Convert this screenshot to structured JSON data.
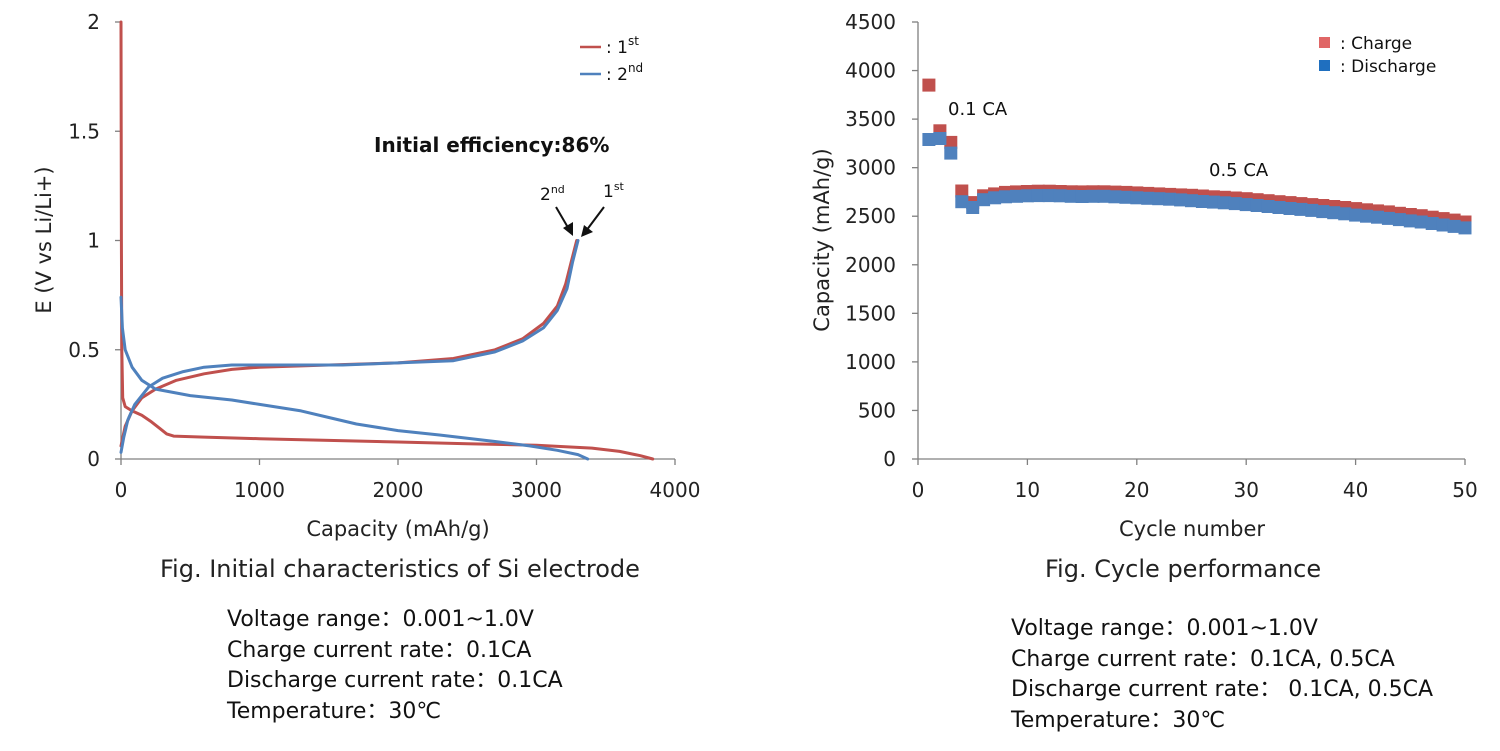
{
  "chart_data": [
    {
      "type": "line",
      "xlabel": "Capacity (mAh/g)",
      "ylabel": "E (V vs Li/Li+)",
      "xlim": [
        0,
        4000
      ],
      "ylim": [
        0,
        2
      ],
      "x_ticks": [
        0,
        1000,
        2000,
        3000,
        4000
      ],
      "y_ticks": [
        0,
        0.5,
        1,
        1.5,
        2
      ],
      "grid": false,
      "legend_position": "top-right",
      "legend": [
        {
          "color": "#c0504d",
          "label": ": 1",
          "sup": "st"
        },
        {
          "color": "#4f81bd",
          "label": ": 2",
          "sup": "nd"
        }
      ],
      "annotation": "Initial efficiency:86%",
      "arrow_labels": [
        {
          "text": "2",
          "sup": "nd"
        },
        {
          "text": "1",
          "sup": "st"
        }
      ],
      "series": [
        {
          "name": "1st",
          "color": "#c0504d",
          "discharge": [
            [
              0,
              2.0
            ],
            [
              3,
              1.0
            ],
            [
              6,
              0.5
            ],
            [
              12,
              0.28
            ],
            [
              30,
              0.24
            ],
            [
              80,
              0.22
            ],
            [
              150,
              0.2
            ],
            [
              220,
              0.17
            ],
            [
              280,
              0.14
            ],
            [
              330,
              0.115
            ],
            [
              380,
              0.105
            ],
            [
              600,
              0.1
            ],
            [
              1000,
              0.093
            ],
            [
              1500,
              0.085
            ],
            [
              2000,
              0.078
            ],
            [
              2500,
              0.07
            ],
            [
              3000,
              0.063
            ],
            [
              3400,
              0.05
            ],
            [
              3600,
              0.035
            ],
            [
              3750,
              0.015
            ],
            [
              3840,
              0.0
            ]
          ],
          "charge": [
            [
              0,
              0.06
            ],
            [
              30,
              0.15
            ],
            [
              80,
              0.22
            ],
            [
              150,
              0.28
            ],
            [
              250,
              0.32
            ],
            [
              400,
              0.36
            ],
            [
              600,
              0.39
            ],
            [
              800,
              0.41
            ],
            [
              1000,
              0.42
            ],
            [
              1500,
              0.43
            ],
            [
              2000,
              0.44
            ],
            [
              2400,
              0.46
            ],
            [
              2700,
              0.5
            ],
            [
              2900,
              0.55
            ],
            [
              3050,
              0.62
            ],
            [
              3150,
              0.7
            ],
            [
              3210,
              0.8
            ],
            [
              3250,
              0.9
            ],
            [
              3290,
              1.0
            ]
          ]
        },
        {
          "name": "2nd",
          "color": "#4f81bd",
          "discharge": [
            [
              0,
              0.74
            ],
            [
              10,
              0.6
            ],
            [
              30,
              0.5
            ],
            [
              80,
              0.42
            ],
            [
              150,
              0.36
            ],
            [
              250,
              0.32
            ],
            [
              500,
              0.29
            ],
            [
              800,
              0.27
            ],
            [
              1000,
              0.25
            ],
            [
              1300,
              0.22
            ],
            [
              1500,
              0.19
            ],
            [
              1700,
              0.16
            ],
            [
              2000,
              0.13
            ],
            [
              2300,
              0.11
            ],
            [
              2700,
              0.08
            ],
            [
              2950,
              0.06
            ],
            [
              3150,
              0.04
            ],
            [
              3300,
              0.02
            ],
            [
              3370,
              0.0
            ]
          ],
          "charge": [
            [
              0,
              0.03
            ],
            [
              20,
              0.1
            ],
            [
              50,
              0.18
            ],
            [
              100,
              0.25
            ],
            [
              200,
              0.33
            ],
            [
              300,
              0.37
            ],
            [
              450,
              0.4
            ],
            [
              600,
              0.42
            ],
            [
              800,
              0.43
            ],
            [
              1200,
              0.43
            ],
            [
              1600,
              0.43
            ],
            [
              2000,
              0.44
            ],
            [
              2400,
              0.45
            ],
            [
              2700,
              0.49
            ],
            [
              2900,
              0.54
            ],
            [
              3050,
              0.6
            ],
            [
              3150,
              0.68
            ],
            [
              3220,
              0.78
            ],
            [
              3260,
              0.9
            ],
            [
              3300,
              1.0
            ]
          ]
        }
      ]
    },
    {
      "type": "scatter",
      "xlabel": "Cycle number",
      "ylabel": "Capacity (mAh/g)",
      "xlim": [
        0,
        50
      ],
      "ylim": [
        0,
        4500
      ],
      "x_ticks": [
        0,
        10,
        20,
        30,
        40,
        50
      ],
      "y_ticks": [
        0,
        500,
        1000,
        1500,
        2000,
        2500,
        3000,
        3500,
        4000,
        4500
      ],
      "grid": false,
      "legend_position": "top-right",
      "legend": [
        {
          "color": "#e06666",
          "label": ": Charge"
        },
        {
          "color": "#1f6fbf",
          "label": ": Discharge"
        }
      ],
      "annotations": [
        "0.1 CA",
        "0.5 CA"
      ],
      "series": [
        {
          "name": "Charge",
          "color": "#c0504d",
          "x": [
            1,
            2,
            3,
            4,
            5,
            6,
            7,
            8,
            9,
            10,
            11,
            12,
            13,
            14,
            15,
            16,
            17,
            18,
            19,
            20,
            21,
            22,
            23,
            24,
            25,
            26,
            27,
            28,
            29,
            30,
            31,
            32,
            33,
            34,
            35,
            36,
            37,
            38,
            39,
            40,
            41,
            42,
            43,
            44,
            45,
            46,
            47,
            48,
            49,
            50
          ],
          "values": [
            3850,
            3380,
            3260,
            2760,
            2640,
            2710,
            2730,
            2745,
            2750,
            2755,
            2758,
            2758,
            2755,
            2752,
            2750,
            2752,
            2752,
            2748,
            2745,
            2740,
            2735,
            2730,
            2725,
            2720,
            2715,
            2708,
            2700,
            2695,
            2688,
            2680,
            2670,
            2660,
            2650,
            2640,
            2630,
            2620,
            2610,
            2600,
            2590,
            2578,
            2566,
            2555,
            2545,
            2530,
            2518,
            2505,
            2490,
            2475,
            2460,
            2440
          ]
        },
        {
          "name": "Discharge",
          "color": "#4f81bd",
          "x": [
            1,
            2,
            3,
            4,
            5,
            6,
            7,
            8,
            9,
            10,
            11,
            12,
            13,
            14,
            15,
            16,
            17,
            18,
            19,
            20,
            21,
            22,
            23,
            24,
            25,
            26,
            27,
            28,
            29,
            30,
            31,
            32,
            33,
            34,
            35,
            36,
            37,
            38,
            39,
            40,
            41,
            42,
            43,
            44,
            45,
            46,
            47,
            48,
            49,
            50
          ],
          "values": [
            3290,
            3300,
            3150,
            2650,
            2590,
            2670,
            2690,
            2700,
            2705,
            2710,
            2712,
            2712,
            2710,
            2705,
            2703,
            2705,
            2705,
            2700,
            2695,
            2690,
            2685,
            2680,
            2675,
            2668,
            2660,
            2652,
            2645,
            2638,
            2630,
            2620,
            2610,
            2600,
            2590,
            2580,
            2570,
            2560,
            2548,
            2536,
            2525,
            2512,
            2500,
            2490,
            2478,
            2465,
            2452,
            2440,
            2425,
            2410,
            2395,
            2380
          ]
        }
      ]
    }
  ],
  "captions": {
    "left": "Fig. Initial characteristics of Si electrode",
    "right": "Fig. Cycle performance"
  },
  "conditions": {
    "left": [
      "Voltage range：0.001~1.0V",
      "Charge current rate：0.1CA",
      "Discharge current rate：0.1CA",
      "Temperature：30℃"
    ],
    "right": [
      "Voltage range：0.001~1.0V",
      "Charge current rate：0.1CA, 0.5CA",
      "Discharge current rate： 0.1CA, 0.5CA",
      "Temperature：30℃"
    ]
  }
}
